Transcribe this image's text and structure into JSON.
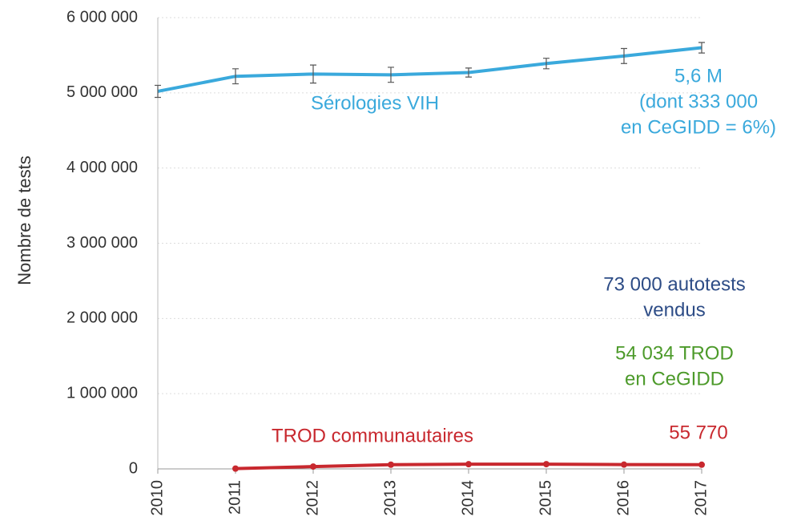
{
  "chart_data": {
    "type": "line",
    "y_label": "Nombre de tests",
    "categories": [
      "2010",
      "2011",
      "2012",
      "2013",
      "2014",
      "2015",
      "2016",
      "2017"
    ],
    "series": [
      {
        "name": "Sérologies VIH",
        "color": "#3aa9dc",
        "values": [
          5020000,
          5220000,
          5250000,
          5240000,
          5270000,
          5390000,
          5490000,
          5600000
        ],
        "errors": [
          80000,
          100000,
          120000,
          100000,
          60000,
          70000,
          100000,
          70000
        ]
      },
      {
        "name": "TROD communautaires",
        "color": "#c8282e",
        "values": [
          null,
          4000,
          31000,
          56000,
          62000,
          63000,
          57000,
          55770
        ]
      }
    ],
    "annotations": [
      {
        "lines": [
          "5,6 M",
          "(dont 333 000",
          "en CeGIDD = 6%)"
        ],
        "color": "#3aa9dc"
      },
      {
        "lines": [
          "73 000 autotests",
          "vendus"
        ],
        "color": "#2d4c86"
      },
      {
        "lines": [
          "54 034 TROD",
          "en CeGIDD"
        ],
        "color": "#4c9a2a"
      },
      {
        "lines": [
          "55 770"
        ],
        "color": "#c8282e"
      }
    ],
    "ylim": [
      0,
      6000000
    ],
    "yticks": [
      0,
      {
        "value": 1000000,
        "label": "1 000 000"
      },
      {
        "value": 2000000,
        "label": "2 000 000"
      },
      {
        "value": 3000000,
        "label": "3 000 000"
      },
      {
        "value": 4000000,
        "label": "4 000 000"
      },
      {
        "value": 5000000,
        "label": "5 000 000"
      },
      {
        "value": 6000000,
        "label": "6 000 000"
      }
    ],
    "grid": true
  }
}
